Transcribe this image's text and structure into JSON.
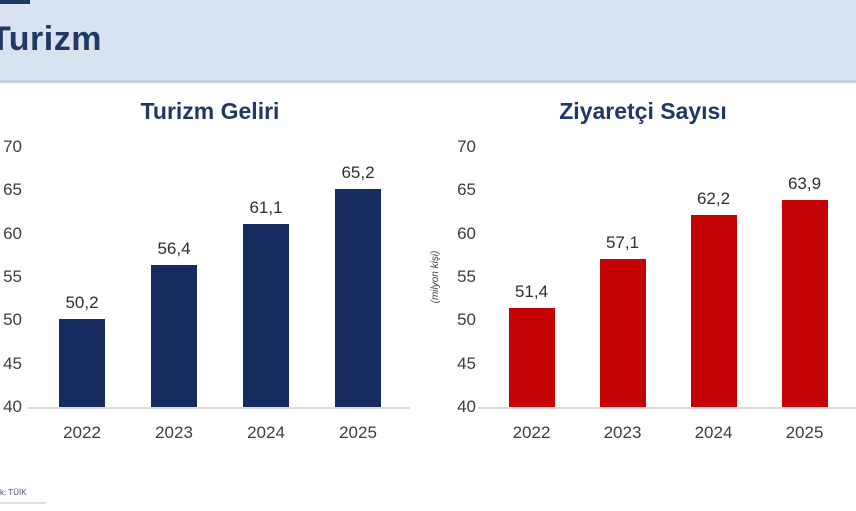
{
  "header": {
    "title": "Turizm"
  },
  "footer": {
    "source_text": "k: TÜİK"
  },
  "colors": {
    "header_bg": "#d9e3f0",
    "title_navy": "#1f3864",
    "navy_bar": "#162b5e",
    "red_bar": "#c40404",
    "axis_text": "#3d3d3d",
    "baseline": "#dcdcdc"
  },
  "chart_data": [
    {
      "type": "bar",
      "title": "Turizm Geliri",
      "categories": [
        "2022",
        "2023",
        "2024",
        "2025"
      ],
      "values": [
        50.2,
        56.4,
        61.1,
        65.2
      ],
      "value_labels": [
        "50,2",
        "56,4",
        "61,1",
        "65,2"
      ],
      "bar_color": "#162b5e",
      "xlabel": "",
      "ylabel": "",
      "ylim": [
        40,
        70
      ],
      "y_ticks": [
        70,
        65,
        60,
        55,
        50,
        45,
        40
      ],
      "grid": false,
      "legend": "none"
    },
    {
      "type": "bar",
      "title": "Ziyaretçi Sayısı",
      "categories": [
        "2022",
        "2023",
        "2024",
        "2025"
      ],
      "values": [
        51.4,
        57.1,
        62.2,
        63.9
      ],
      "value_labels": [
        "51,4",
        "57,1",
        "62,2",
        "63,9"
      ],
      "bar_color": "#c40404",
      "xlabel": "",
      "ylabel": "(milyon kişi)",
      "ylim": [
        40,
        70
      ],
      "y_ticks": [
        70,
        65,
        60,
        55,
        50,
        45,
        40
      ],
      "grid": false,
      "legend": "none"
    }
  ]
}
